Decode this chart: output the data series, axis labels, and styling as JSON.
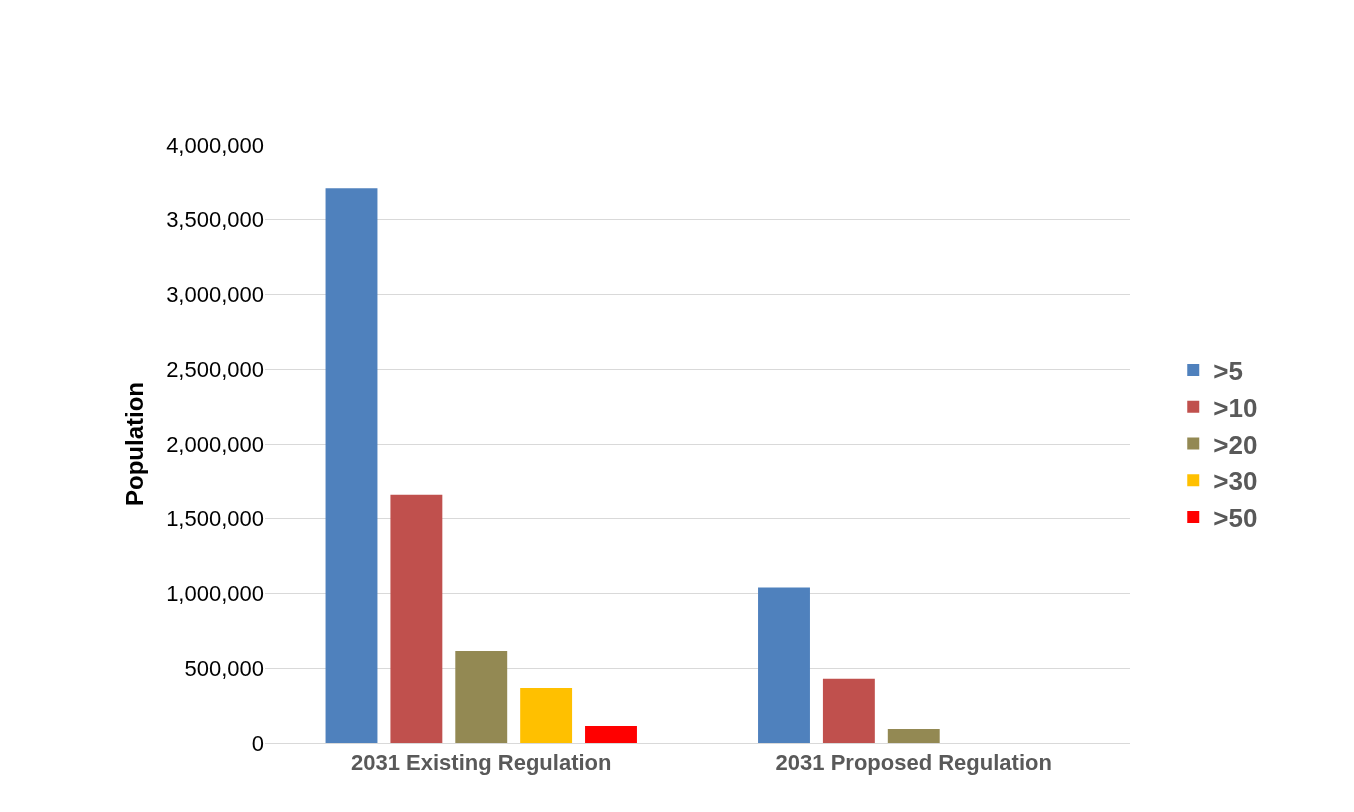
{
  "chart_data": {
    "type": "bar",
    "ylabel": "Population",
    "categories": [
      "2031 Existing Regulation",
      "2031 Proposed Regulation"
    ],
    "series": [
      {
        "name": ">5",
        "color": "#4f81bd",
        "values": [
          3710000,
          1040000
        ]
      },
      {
        "name": ">10",
        "color": "#c0504d",
        "values": [
          1660000,
          430000
        ]
      },
      {
        "name": ">20",
        "color": "#938953",
        "values": [
          615000,
          94000
        ]
      },
      {
        "name": ">30",
        "color": "#ffc000",
        "values": [
          368000,
          0
        ]
      },
      {
        "name": ">50",
        "color": "#ff0000",
        "values": [
          114000,
          0
        ]
      }
    ],
    "ylim": [
      0,
      4000000
    ],
    "yticks": [
      {
        "value": 0,
        "label": "0"
      },
      {
        "value": 500000,
        "label": "500,000"
      },
      {
        "value": 1000000,
        "label": "1,000,000"
      },
      {
        "value": 1500000,
        "label": "1,500,000"
      },
      {
        "value": 2000000,
        "label": "2,000,000"
      },
      {
        "value": 2500000,
        "label": "2,500,000"
      },
      {
        "value": 3000000,
        "label": "3,000,000"
      },
      {
        "value": 3500000,
        "label": "3,500,000"
      },
      {
        "value": 4000000,
        "label": "4,000,000"
      }
    ],
    "grid": "y",
    "legend": "right"
  }
}
